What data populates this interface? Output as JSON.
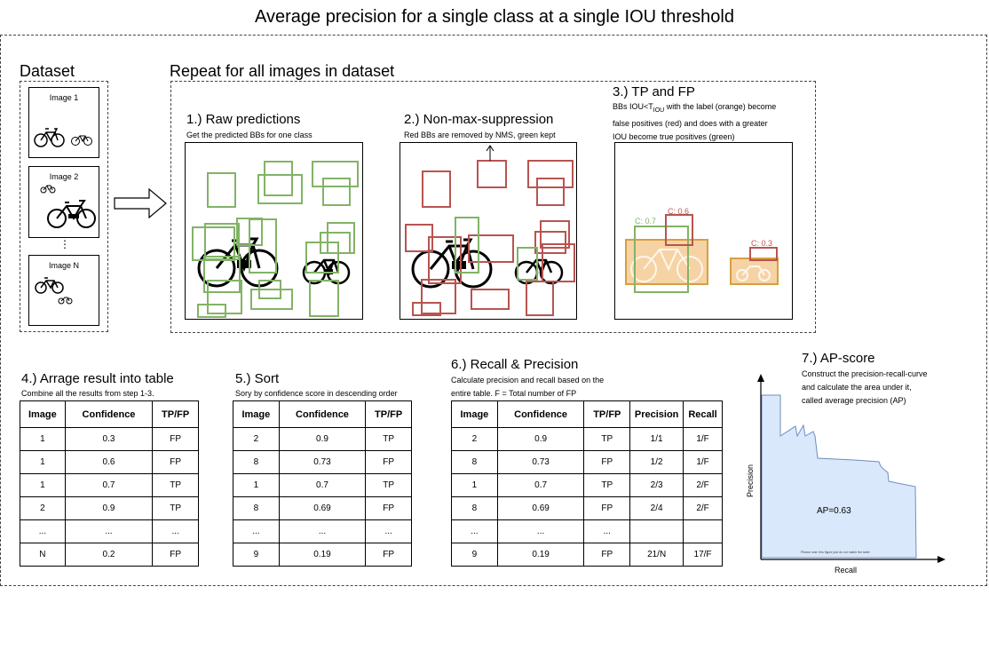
{
  "title": "Average precision for a single class at a single IOU threshold",
  "dataset": {
    "heading": "Dataset",
    "images": [
      "Image 1",
      "Image 2",
      "Image N"
    ],
    "ellipsis": "⋮"
  },
  "repeat": {
    "heading": "Repeat for all images in dataset"
  },
  "step1": {
    "heading": "1.) Raw predictions",
    "desc": "Get the predicted BBs for one class"
  },
  "step2": {
    "heading": "2.) Non-max-suppression",
    "desc": "Red BBs are removed by NMS, green kept"
  },
  "step3": {
    "heading": "3.) TP and FP",
    "desc_line1_pre": "BBs IOU<T",
    "desc_line1_sub": "IOU",
    "desc_line1_post": " with the label (orange) become",
    "desc_line2": "false positives (red) and does with a greater",
    "desc_line3": "IOU become true positives (green)",
    "labels": [
      "C: 0.7",
      "C: 0.6",
      "C: 0.3"
    ]
  },
  "step4": {
    "heading": "4.) Arrage result into table",
    "desc": "Combine all the results from step 1-3.",
    "columns": [
      "Image",
      "Confidence",
      "TP/FP"
    ],
    "rows": [
      [
        "1",
        "0.3",
        "FP"
      ],
      [
        "1",
        "0.6",
        "FP"
      ],
      [
        "1",
        "0.7",
        "TP"
      ],
      [
        "2",
        "0.9",
        "TP"
      ],
      [
        "...",
        "...",
        "..."
      ],
      [
        "N",
        "0.2",
        "FP"
      ]
    ]
  },
  "step5": {
    "heading": "5.) Sort",
    "desc": "Sory by confidence score in descending order",
    "columns": [
      "Image",
      "Confidence",
      "TP/FP"
    ],
    "rows": [
      [
        "2",
        "0.9",
        "TP"
      ],
      [
        "8",
        "0.73",
        "FP"
      ],
      [
        "1",
        "0.7",
        "TP"
      ],
      [
        "8",
        "0.69",
        "FP"
      ],
      [
        "...",
        "...",
        "..."
      ],
      [
        "9",
        "0.19",
        "FP"
      ]
    ]
  },
  "step6": {
    "heading": "6.) Recall & Precision",
    "desc_line1": "Calculate precision and recall based on the",
    "desc_line2": "entire table. F = Total number of FP",
    "columns": [
      "Image",
      "Confidence",
      "TP/FP",
      "Precision",
      "Recall"
    ],
    "rows": [
      [
        "2",
        "0.9",
        "TP",
        "1/1",
        "1/F"
      ],
      [
        "8",
        "0.73",
        "FP",
        "1/2",
        "1/F"
      ],
      [
        "1",
        "0.7",
        "TP",
        "2/3",
        "2/F"
      ],
      [
        "8",
        "0.69",
        "FP",
        "2/4",
        "2/F"
      ],
      [
        "...",
        "...",
        "...",
        "",
        ""
      ],
      [
        "9",
        "0.19",
        "FP",
        "21/N",
        "17/F"
      ]
    ]
  },
  "step7": {
    "heading": "7.) AP-score",
    "desc_line1": "Construct the precision-recall-curve",
    "desc_line2": "and calculate the area under it,",
    "desc_line3": "called average precision (AP)",
    "ylabel": "Precision",
    "xlabel": "Recall",
    "ap_label": "AP=0.63",
    "note": "Please note: this figure just do not match the table"
  },
  "colors": {
    "green": "#82b366",
    "red": "#b85450",
    "orange_fill": "#f6d3a5",
    "orange_stroke": "#d6a040",
    "pr_fill": "#dae8fc",
    "pr_stroke": "#6c8ebf"
  }
}
